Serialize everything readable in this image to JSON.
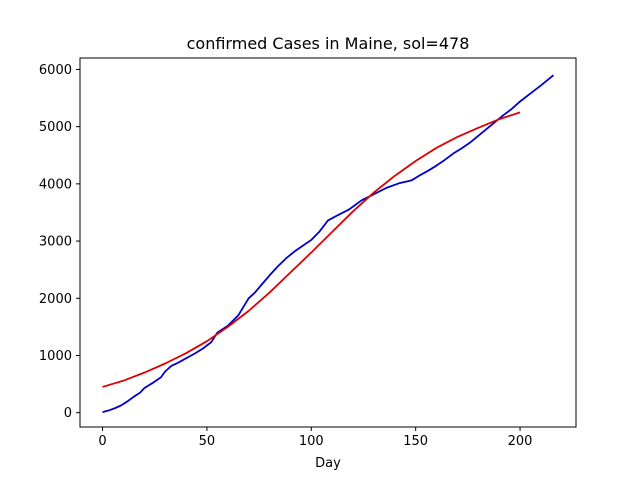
{
  "chart_data": {
    "type": "line",
    "title": "confirmed Cases in Maine, sol=478",
    "xlabel": "Day",
    "ylabel": "",
    "xlim": [
      -10.8,
      226.8
    ],
    "ylim": [
      -250,
      6200
    ],
    "xticks": [
      0,
      50,
      100,
      150,
      200
    ],
    "yticks": [
      0,
      1000,
      2000,
      3000,
      4000,
      5000,
      6000
    ],
    "grid": false,
    "series": [
      {
        "color": "#0000cc",
        "x": [
          0,
          3,
          6,
          9,
          12,
          15,
          18,
          20,
          24,
          28,
          30,
          33,
          36,
          40,
          44,
          48,
          52,
          55,
          60,
          65,
          70,
          73,
          76,
          80,
          84,
          88,
          92,
          96,
          100,
          104,
          108,
          112,
          118,
          124,
          130,
          136,
          142,
          148,
          152,
          156,
          160,
          164,
          168,
          172,
          176,
          180,
          184,
          188,
          192,
          196,
          200,
          205,
          210,
          216
        ],
        "y": [
          10,
          40,
          80,
          130,
          200,
          280,
          350,
          430,
          520,
          620,
          720,
          820,
          870,
          950,
          1030,
          1120,
          1230,
          1400,
          1520,
          1700,
          2000,
          2100,
          2230,
          2400,
          2560,
          2700,
          2820,
          2920,
          3020,
          3170,
          3360,
          3440,
          3550,
          3710,
          3820,
          3930,
          4010,
          4060,
          4150,
          4230,
          4320,
          4420,
          4530,
          4620,
          4720,
          4840,
          4960,
          5080,
          5200,
          5310,
          5440,
          5580,
          5720,
          5900
        ]
      },
      {
        "color": "#dd0000",
        "x": [
          0,
          10,
          20,
          30,
          40,
          50,
          60,
          70,
          80,
          90,
          100,
          110,
          120,
          130,
          140,
          150,
          160,
          170,
          180,
          190,
          200
        ],
        "y": [
          450,
          560,
          700,
          860,
          1040,
          1250,
          1500,
          1780,
          2100,
          2450,
          2800,
          3160,
          3520,
          3850,
          4140,
          4400,
          4630,
          4820,
          4980,
          5130,
          5250
        ]
      }
    ]
  }
}
